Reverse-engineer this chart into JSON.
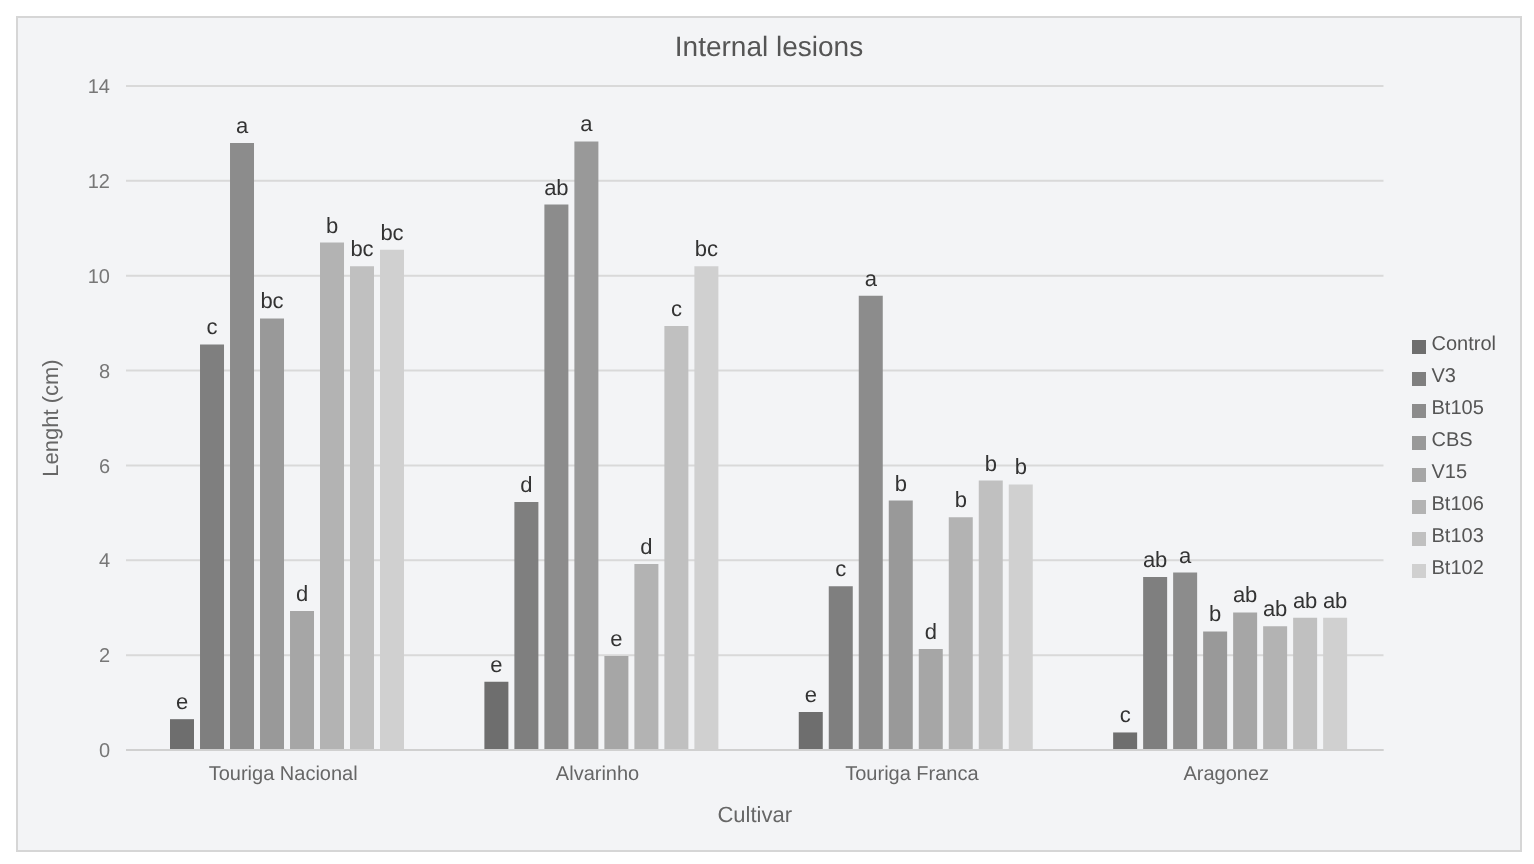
{
  "chart_data": {
    "type": "bar",
    "title": "Internal lesions",
    "xlabel": "Cultivar",
    "ylabel": "Lenght (cm)",
    "categories": [
      "Touriga Nacional",
      "Alvarinho",
      "Touriga Franca",
      "Aragonez"
    ],
    "series": [
      {
        "name": "Control",
        "color": "#6e6e6e",
        "values": [
          0.65,
          1.44,
          0.8,
          0.37
        ],
        "value_labels": [
          "e",
          "e",
          "e",
          "c"
        ]
      },
      {
        "name": "V3",
        "color": "#7f7f7f",
        "values": [
          8.55,
          5.23,
          3.45,
          3.65
        ],
        "value_labels": [
          "c",
          "d",
          "c",
          "ab"
        ]
      },
      {
        "name": "Bt105",
        "color": "#8c8c8c",
        "values": [
          12.8,
          11.5,
          9.58,
          3.74
        ],
        "value_labels": [
          "a",
          "ab",
          "a",
          "a"
        ]
      },
      {
        "name": "CBS",
        "color": "#999999",
        "values": [
          9.1,
          12.83,
          5.26,
          2.5
        ],
        "value_labels": [
          "bc",
          "a",
          "b",
          "b"
        ]
      },
      {
        "name": "V15",
        "color": "#a6a6a6",
        "values": [
          2.93,
          1.98,
          2.13,
          2.9
        ],
        "value_labels": [
          "d",
          "e",
          "d",
          "ab"
        ]
      },
      {
        "name": "Bt106",
        "color": "#b3b3b3",
        "values": [
          10.7,
          3.92,
          4.91,
          2.61
        ],
        "value_labels": [
          "b",
          "d",
          "b",
          "ab"
        ]
      },
      {
        "name": "Bt103",
        "color": "#c0c0c0",
        "values": [
          10.2,
          8.94,
          5.68,
          2.79
        ],
        "value_labels": [
          "bc",
          "c",
          "b",
          "ab"
        ]
      },
      {
        "name": "Bt102",
        "color": "#d0d0d0",
        "values": [
          10.55,
          10.2,
          5.6,
          2.79
        ],
        "value_labels": [
          "bc",
          "bc",
          "b",
          "ab"
        ]
      }
    ],
    "ylim": [
      0,
      14
    ],
    "yticks": [
      0,
      2,
      4,
      6,
      8,
      10,
      12,
      14
    ],
    "grid": "y",
    "legend": "right"
  }
}
